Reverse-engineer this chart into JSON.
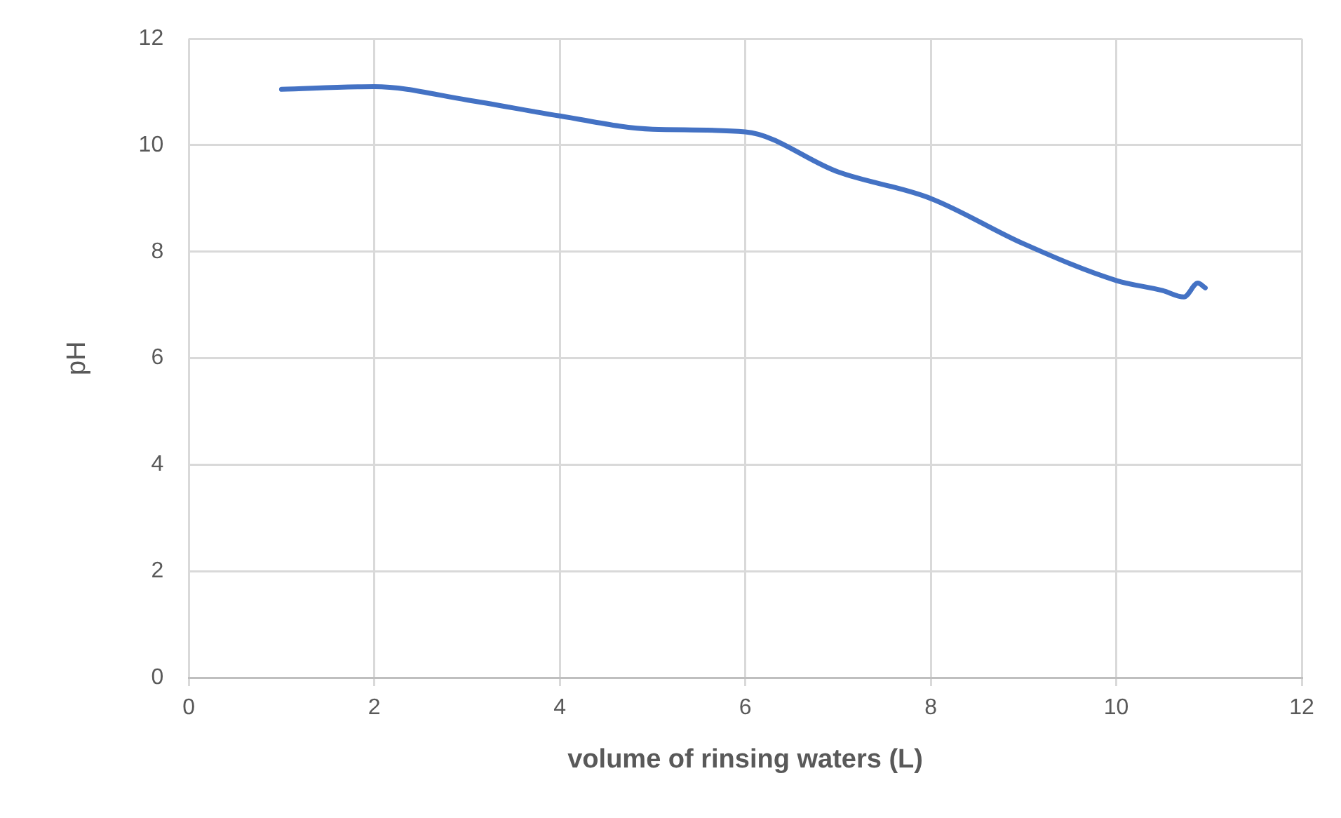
{
  "chart_data": {
    "type": "line",
    "xlabel": "volume of rinsing waters (L)",
    "ylabel": "pH",
    "x": [
      1,
      2,
      3,
      4,
      5,
      6,
      7,
      8,
      9,
      10,
      10.5,
      10.73,
      10.88,
      10.96
    ],
    "series": [
      {
        "color": "#4472c4",
        "values": [
          11.05,
          11.1,
          10.85,
          10.55,
          10.3,
          10.25,
          9.5,
          9.0,
          8.15,
          7.46,
          7.27,
          7.15,
          7.41,
          7.32
        ]
      }
    ],
    "xlim": [
      0,
      12
    ],
    "xticks": [
      0,
      2,
      4,
      6,
      8,
      10,
      12
    ],
    "ylim": [
      0,
      12
    ],
    "yticks": [
      0,
      2,
      4,
      6,
      8,
      10,
      12
    ],
    "grid": true,
    "legend": false,
    "marker": "none",
    "line_style": "solid"
  }
}
